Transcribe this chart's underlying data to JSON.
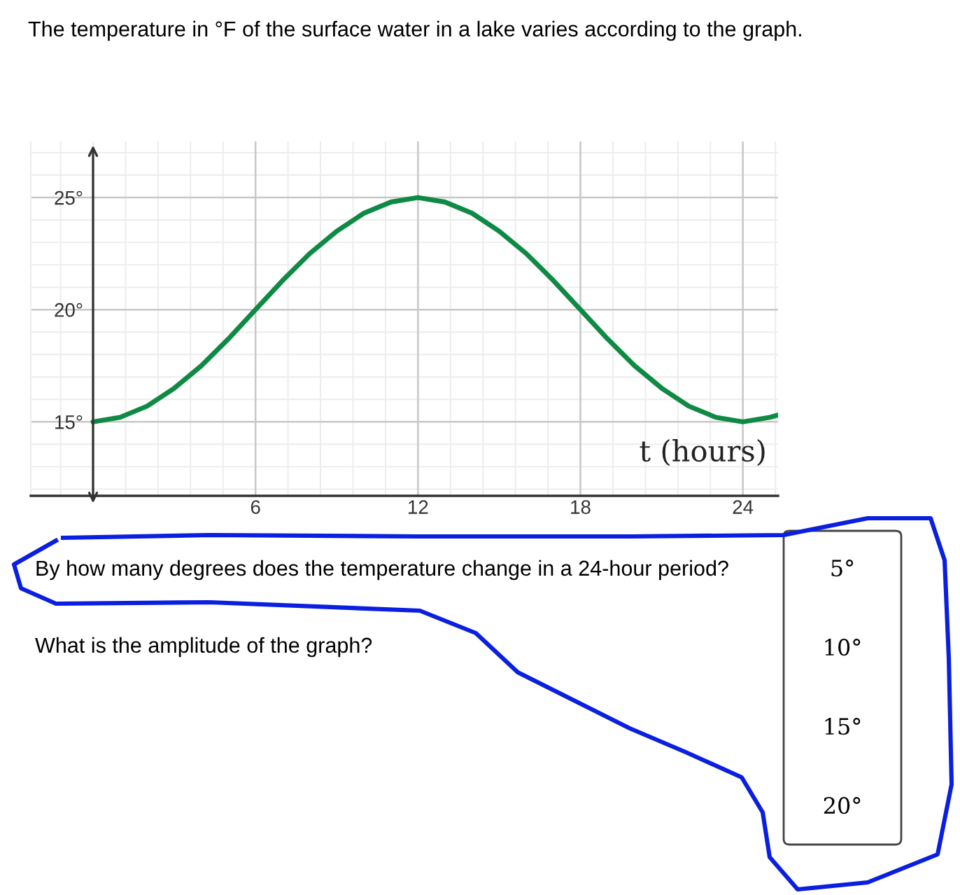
{
  "chart_data": {
    "type": "line",
    "title": "The temperature in °F of the surface water in a lake varies according to the graph.",
    "xlabel": "t (hours)",
    "x": [
      0,
      1,
      2,
      3,
      4,
      5,
      6,
      7,
      8,
      9,
      10,
      11,
      12,
      13,
      14,
      15,
      16,
      17,
      18,
      19,
      20,
      21,
      22,
      23,
      24,
      25,
      25.3
    ],
    "series": [
      {
        "color": "#0f8a45",
        "values": [
          15,
          15.2,
          15.7,
          16.5,
          17.5,
          18.7,
          20,
          21.3,
          22.5,
          23.5,
          24.3,
          24.8,
          25,
          24.8,
          24.3,
          23.5,
          22.5,
          21.3,
          20,
          18.7,
          17.5,
          16.5,
          15.7,
          15.2,
          15,
          15.2,
          15.3
        ]
      }
    ],
    "xlim": [
      -2.3,
      25.3
    ],
    "ylim": [
      11.7,
      27.5
    ],
    "xticks": [
      6,
      12,
      18,
      24
    ],
    "yticks": [
      {
        "value": 15,
        "label": "15°"
      },
      {
        "value": 20,
        "label": "20°"
      },
      {
        "value": 25,
        "label": "25°"
      }
    ],
    "grid": true,
    "annotations": [
      "By how many degrees does the temperature change in a 24-hour period?",
      "What is the amplitude of the graph?",
      "5°",
      "10°",
      "15°",
      "20°"
    ]
  }
}
